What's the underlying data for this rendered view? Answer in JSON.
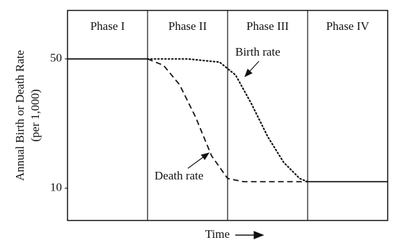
{
  "chart_data": {
    "type": "line",
    "phases": [
      "Phase I",
      "Phase II",
      "Phase III",
      "Phase IV"
    ],
    "ylabel": [
      "Annual Birth or Death Rate",
      "(per 1,000)"
    ],
    "xlabel": "Time",
    "xlim": [
      0,
      4
    ],
    "ylim": [
      0,
      65
    ],
    "yticks": [
      10,
      50
    ],
    "color": "#111111",
    "annotations": [
      "Birth rate",
      "Death rate"
    ],
    "series": [
      {
        "style": "solid",
        "x": [
          0,
          1,
          2,
          3,
          4
        ],
        "values": [
          50,
          50,
          null,
          12,
          12
        ]
      },
      {
        "name": "Death rate",
        "style": "dashed",
        "x": [
          1,
          1.2,
          1.4,
          1.6,
          1.8,
          2.0,
          2.2,
          2.6,
          3.0
        ],
        "values": [
          50,
          48,
          42,
          32,
          20,
          13,
          12,
          12,
          12
        ]
      },
      {
        "name": "Birth rate",
        "style": "dotted",
        "x": [
          1,
          1.5,
          1.9,
          2.1,
          2.3,
          2.5,
          2.7,
          2.9,
          3.0
        ],
        "values": [
          50,
          50,
          49,
          45,
          36,
          26,
          18,
          13,
          12
        ]
      }
    ]
  }
}
